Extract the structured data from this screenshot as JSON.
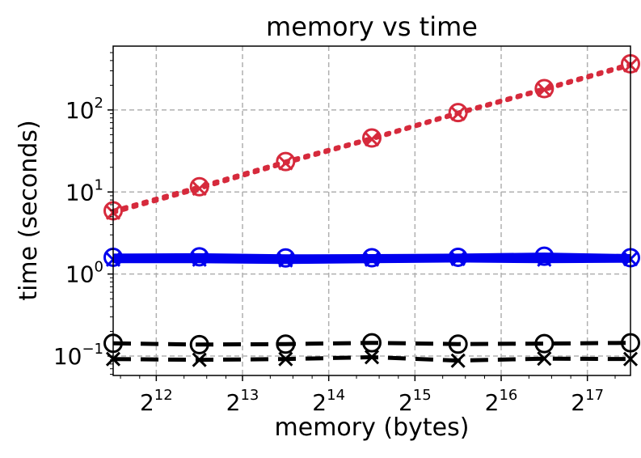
{
  "chart_data": {
    "type": "line",
    "title": "memory vs time",
    "xlabel": "memory (bytes)",
    "ylabel": "time (seconds)",
    "xscale": "log2",
    "yscale": "log10",
    "grid": true,
    "xlim": [
      2896,
      185364
    ],
    "ylim": [
      0.058,
      600
    ],
    "x_ticks": [
      {
        "value": 4096,
        "base": "2",
        "exp": "12"
      },
      {
        "value": 8192,
        "base": "2",
        "exp": "13"
      },
      {
        "value": 16384,
        "base": "2",
        "exp": "14"
      },
      {
        "value": 32768,
        "base": "2",
        "exp": "15"
      },
      {
        "value": 65536,
        "base": "2",
        "exp": "16"
      },
      {
        "value": 131072,
        "base": "2",
        "exp": "17"
      }
    ],
    "y_ticks": [
      {
        "value": 0.1,
        "base": "10",
        "exp": "−1"
      },
      {
        "value": 1,
        "base": "10",
        "exp": "0"
      },
      {
        "value": 10,
        "base": "10",
        "exp": "1"
      },
      {
        "value": 100,
        "base": "10",
        "exp": "2"
      }
    ],
    "x": [
      2896,
      5793,
      11585,
      23170,
      46341,
      92682,
      185364
    ],
    "series": [
      {
        "color": "#d62a3c",
        "dash": "dotted",
        "marker": "o",
        "values": [
          5.9,
          11.6,
          23.5,
          45.5,
          93.0,
          182.0,
          365.0
        ]
      },
      {
        "color": "#d62a3c",
        "dash": "dotted",
        "marker": "x",
        "values": [
          5.6,
          11.0,
          22.5,
          44.0,
          90.0,
          176.0,
          350.0
        ]
      },
      {
        "color": "#0000ee",
        "dash": "solid",
        "marker": "o",
        "values": [
          1.6,
          1.62,
          1.57,
          1.58,
          1.6,
          1.65,
          1.58
        ]
      },
      {
        "color": "#0000ee",
        "dash": "solid",
        "marker": "x",
        "values": [
          1.5,
          1.5,
          1.47,
          1.5,
          1.53,
          1.5,
          1.52
        ]
      },
      {
        "color": "#000000",
        "dash": "dashed",
        "marker": "o",
        "values": [
          0.143,
          0.138,
          0.14,
          0.145,
          0.14,
          0.142,
          0.145
        ]
      },
      {
        "color": "#000000",
        "dash": "dashed",
        "marker": "x",
        "values": [
          0.092,
          0.09,
          0.092,
          0.097,
          0.088,
          0.093,
          0.092
        ]
      }
    ]
  }
}
